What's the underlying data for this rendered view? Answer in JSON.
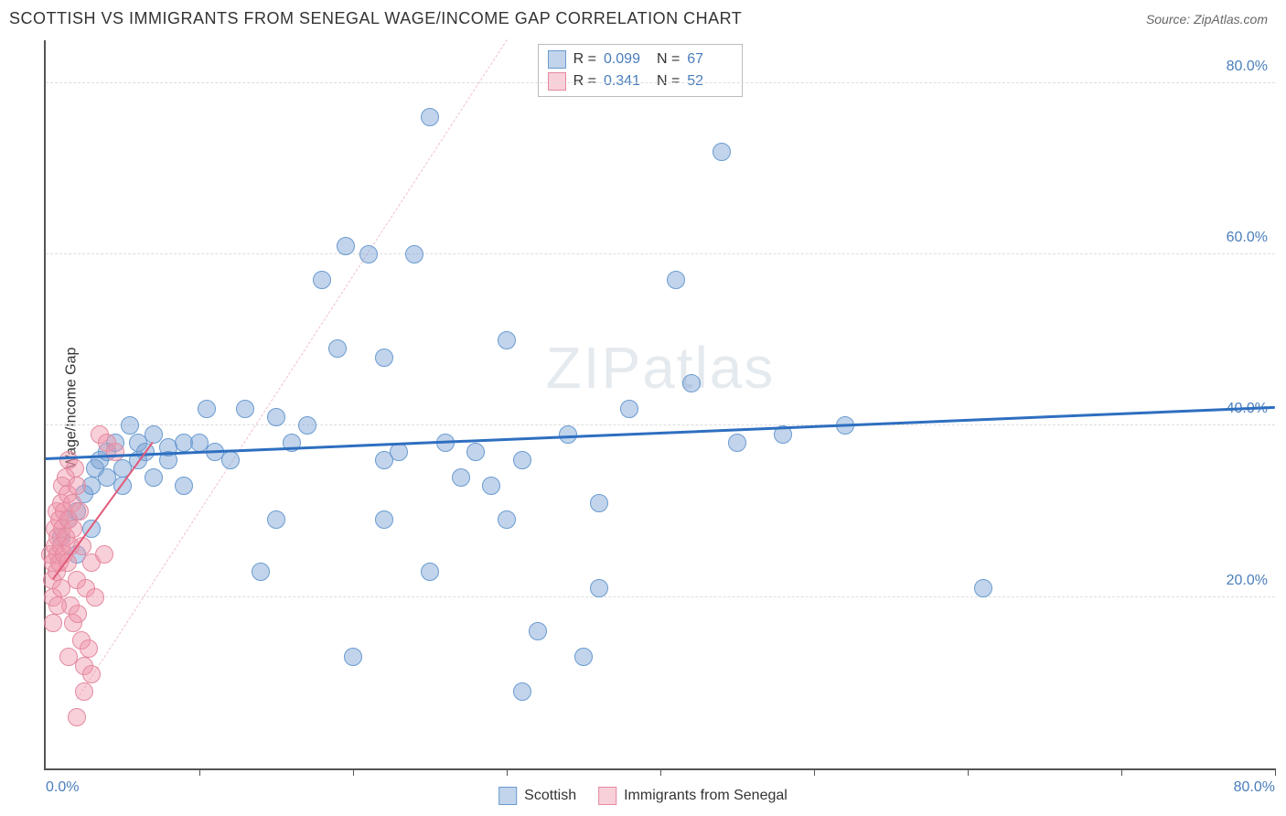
{
  "title": "SCOTTISH VS IMMIGRANTS FROM SENEGAL WAGE/INCOME GAP CORRELATION CHART",
  "source": "Source: ZipAtlas.com",
  "watermark": "ZIPatlas",
  "ylabel": "Wage/Income Gap",
  "chart": {
    "type": "scatter",
    "xlim": [
      0,
      80
    ],
    "ylim": [
      0,
      85
    ],
    "x_axis_labels": {
      "start": "0.0%",
      "end": "80.0%"
    },
    "y_ticks": [
      {
        "value": 20,
        "label": "20.0%"
      },
      {
        "value": 40,
        "label": "40.0%"
      },
      {
        "value": 60,
        "label": "60.0%"
      },
      {
        "value": 80,
        "label": "80.0%"
      }
    ],
    "x_tick_positions": [
      10,
      20,
      30,
      40,
      50,
      60,
      70,
      80
    ],
    "grid_color": "#dddddd",
    "background_color": "#ffffff",
    "marker_radius": 10,
    "marker_border_width": 1.5,
    "series": [
      {
        "name": "Scottish",
        "fill": "rgba(120,160,210,0.45)",
        "stroke": "#6a9bd1",
        "R": "0.099",
        "N": "67",
        "trend": {
          "x1": 0,
          "y1": 36,
          "x2": 80,
          "y2": 42,
          "color": "#2e6fc0",
          "width": 3,
          "dash": false
        },
        "points": [
          [
            1,
            27
          ],
          [
            1.5,
            29
          ],
          [
            2,
            30
          ],
          [
            2,
            25
          ],
          [
            2.5,
            32
          ],
          [
            3,
            28
          ],
          [
            3,
            33
          ],
          [
            3.2,
            35
          ],
          [
            3.5,
            36
          ],
          [
            4,
            34
          ],
          [
            4,
            37
          ],
          [
            4.5,
            38
          ],
          [
            5,
            35
          ],
          [
            5,
            33
          ],
          [
            5.5,
            40
          ],
          [
            6,
            36
          ],
          [
            6,
            38
          ],
          [
            6.5,
            37
          ],
          [
            7,
            34
          ],
          [
            7,
            39
          ],
          [
            8,
            37.5
          ],
          [
            8,
            36
          ],
          [
            9,
            33
          ],
          [
            9,
            38
          ],
          [
            10,
            38
          ],
          [
            10.5,
            42
          ],
          [
            11,
            37
          ],
          [
            12,
            36
          ],
          [
            13,
            42
          ],
          [
            15,
            41
          ],
          [
            16,
            38
          ],
          [
            17,
            40
          ],
          [
            18,
            57
          ],
          [
            19,
            49
          ],
          [
            19.5,
            61
          ],
          [
            20,
            13
          ],
          [
            21,
            60
          ],
          [
            22,
            36
          ],
          [
            22,
            29
          ],
          [
            22,
            48
          ],
          [
            23,
            37
          ],
          [
            24,
            60
          ],
          [
            25,
            23
          ],
          [
            25,
            76
          ],
          [
            26,
            38
          ],
          [
            27,
            34
          ],
          [
            28,
            37
          ],
          [
            29,
            33
          ],
          [
            30,
            29
          ],
          [
            31,
            36
          ],
          [
            30,
            50
          ],
          [
            31,
            9
          ],
          [
            32,
            16
          ],
          [
            34,
            39
          ],
          [
            35,
            13
          ],
          [
            36,
            31
          ],
          [
            36,
            21
          ],
          [
            38,
            42
          ],
          [
            41,
            57
          ],
          [
            42,
            45
          ],
          [
            44,
            72
          ],
          [
            52,
            40
          ],
          [
            61,
            21
          ],
          [
            45,
            38
          ],
          [
            48,
            39
          ],
          [
            14,
            23
          ],
          [
            15,
            29
          ]
        ]
      },
      {
        "name": "Immigrants from Senegal",
        "fill": "rgba(240,150,170,0.45)",
        "stroke": "#e48aa0",
        "R": "0.341",
        "N": "52",
        "trend": {
          "x1": 0.5,
          "y1": 22,
          "x2": 7,
          "y2": 38,
          "color": "#e05a7a",
          "width": 2.5,
          "dash": false
        },
        "diag": {
          "x1": 2,
          "y1": 8,
          "x2": 30,
          "y2": 85,
          "color": "#f0c0cc",
          "width": 1,
          "dash": true
        },
        "points": [
          [
            0.3,
            25
          ],
          [
            0.4,
            22
          ],
          [
            0.5,
            20
          ],
          [
            0.5,
            24
          ],
          [
            0.6,
            26
          ],
          [
            0.6,
            28
          ],
          [
            0.7,
            23
          ],
          [
            0.7,
            30
          ],
          [
            0.8,
            25
          ],
          [
            0.8,
            27
          ],
          [
            0.9,
            29
          ],
          [
            0.9,
            24
          ],
          [
            1,
            31
          ],
          [
            1,
            26
          ],
          [
            1,
            21
          ],
          [
            1.1,
            28
          ],
          [
            1.1,
            33
          ],
          [
            1.2,
            25
          ],
          [
            1.2,
            30
          ],
          [
            1.3,
            34
          ],
          [
            1.3,
            27
          ],
          [
            1.4,
            32
          ],
          [
            1.4,
            24
          ],
          [
            1.5,
            36
          ],
          [
            1.5,
            29
          ],
          [
            1.6,
            26
          ],
          [
            1.6,
            19
          ],
          [
            1.7,
            31
          ],
          [
            1.8,
            17
          ],
          [
            1.8,
            28
          ],
          [
            1.9,
            35
          ],
          [
            2,
            22
          ],
          [
            2,
            33
          ],
          [
            2.1,
            18
          ],
          [
            2.2,
            30
          ],
          [
            2.3,
            15
          ],
          [
            2.4,
            26
          ],
          [
            2.5,
            12
          ],
          [
            2.6,
            21
          ],
          [
            2.8,
            14
          ],
          [
            3,
            11
          ],
          [
            3,
            24
          ],
          [
            3.5,
            39
          ],
          [
            4,
            38
          ],
          [
            4.5,
            37
          ],
          [
            2,
            6
          ],
          [
            2.5,
            9
          ],
          [
            1.5,
            13
          ],
          [
            3.2,
            20
          ],
          [
            3.8,
            25
          ],
          [
            0.5,
            17
          ],
          [
            0.8,
            19
          ]
        ]
      }
    ]
  },
  "colors": {
    "axis": "#555555",
    "tick_text": "#4a7ebb",
    "title_text": "#333333"
  },
  "legend": {
    "stats_rows": [
      {
        "swatch_fill": "rgba(120,160,210,0.45)",
        "swatch_stroke": "#6a9bd1",
        "R_label": "R =",
        "R": "0.099",
        "N_label": "N =",
        "N": "67"
      },
      {
        "swatch_fill": "rgba(240,150,170,0.45)",
        "swatch_stroke": "#e48aa0",
        "R_label": "R =",
        "R": "0.341",
        "N_label": "N =",
        "N": "52"
      }
    ],
    "bottom": [
      {
        "swatch_fill": "rgba(120,160,210,0.45)",
        "swatch_stroke": "#6a9bd1",
        "label": "Scottish"
      },
      {
        "swatch_fill": "rgba(240,150,170,0.45)",
        "swatch_stroke": "#e48aa0",
        "label": "Immigrants from Senegal"
      }
    ]
  }
}
